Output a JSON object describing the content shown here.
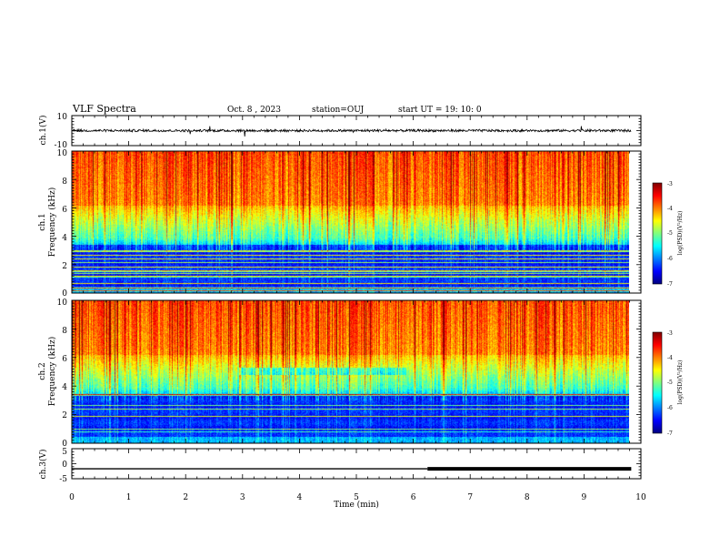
{
  "header": {
    "title": "VLF Spectra",
    "date": "Oct. 8 , 2023",
    "station": "station=OUJ",
    "start": "start UT = 19: 10: 0"
  },
  "chart_data": [
    {
      "type": "line",
      "name": "ch1-waveform",
      "ylabel": "ch.1(V)",
      "ylim": [
        -10,
        10
      ],
      "yticks": [
        "10",
        "-10"
      ],
      "xlim": [
        0,
        10
      ],
      "baseline_value": 0,
      "data_end_min": 9.83
    },
    {
      "type": "heatmap",
      "name": "ch1-spectrogram",
      "ylabel": "ch.1",
      "ylabel2": "Frequency (kHz)",
      "ylim": [
        0,
        10
      ],
      "yticks": [
        "0",
        "2",
        "4",
        "6",
        "8",
        "10"
      ],
      "xlim": [
        0,
        10
      ],
      "data_end_min": 9.83,
      "color_scale": {
        "label": "log(PSD)(V²/Hz)",
        "range": [
          -7,
          -3
        ],
        "ticks": [
          "-3",
          "-4",
          "-5",
          "-6",
          "-7"
        ]
      }
    },
    {
      "type": "heatmap",
      "name": "ch2-spectrogram",
      "ylabel": "ch.2",
      "ylabel2": "Frequency (kHz)",
      "ylim": [
        0,
        10
      ],
      "yticks": [
        "0",
        "2",
        "4",
        "6",
        "8",
        "10"
      ],
      "xlim": [
        0,
        10
      ],
      "data_end_min": 9.83,
      "color_scale": {
        "label": "log(PSD)(V²/Hz)",
        "range": [
          -7,
          -3
        ],
        "ticks": [
          "-3",
          "-4",
          "-5",
          "-6",
          "-7"
        ]
      }
    },
    {
      "type": "line",
      "name": "ch3-signal",
      "ylabel": "ch.3(V)",
      "ylim": [
        -5,
        5
      ],
      "yticks": [
        "5",
        "0",
        "-5"
      ],
      "xlim": [
        0,
        10
      ],
      "value": -1.7,
      "thick_from_min": 6.25,
      "data_end_min": 9.83,
      "xlabel": "Time (min)",
      "xticks": [
        "0",
        "1",
        "2",
        "3",
        "4",
        "5",
        "6",
        "7",
        "8",
        "9",
        "10"
      ]
    }
  ],
  "colors": {
    "high": "#ff0000",
    "mid": "#00e060",
    "low": "#0000a0",
    "axis": "#000000"
  }
}
